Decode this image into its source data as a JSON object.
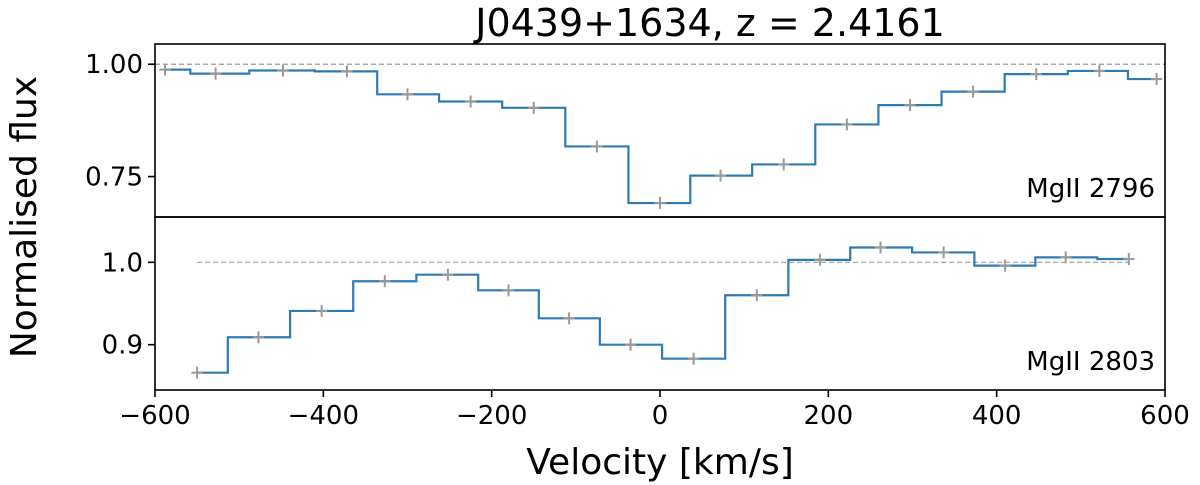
{
  "chart_data": {
    "type": "line",
    "title": "J0439+1634,   z = 2.4161",
    "xlabel": "Velocity [km/s]",
    "ylabel": "Normalised flux",
    "xlim": [
      -600,
      600
    ],
    "xticks": [
      -600,
      -400,
      -200,
      0,
      200,
      400,
      600
    ],
    "xtick_labels": [
      "−600",
      "−400",
      "−200",
      "0",
      "200",
      "400",
      "600"
    ],
    "grid": false,
    "colors": {
      "spectrum": "#2e7bb4",
      "errorbar": "#999999",
      "continuum": "#999999"
    },
    "panels": [
      {
        "label": "MgII 2796",
        "ylim": [
          0.66,
          1.045
        ],
        "yticks": [
          0.75,
          1.0
        ],
        "ytick_labels": [
          "0.75",
          "1.00"
        ],
        "continuum": {
          "y": 1.0,
          "x_range": [
            -600,
            600
          ]
        },
        "x": [
          -588,
          -528,
          -448,
          -372,
          -300,
          -225,
          -150,
          -75,
          0,
          72,
          147,
          222,
          297,
          372,
          447,
          522,
          590
        ],
        "y": [
          0.988,
          0.979,
          0.986,
          0.984,
          0.933,
          0.917,
          0.903,
          0.817,
          0.691,
          0.752,
          0.777,
          0.866,
          0.909,
          0.939,
          0.978,
          0.985,
          0.967
        ]
      },
      {
        "label": "MgII 2803",
        "ylim": [
          0.845,
          1.055
        ],
        "yticks": [
          0.9,
          1.0
        ],
        "ytick_labels": [
          "0.9",
          "1.0"
        ],
        "continuum": {
          "y": 1.0,
          "x_range": [
            -550,
            560
          ]
        },
        "x": [
          -550,
          -477,
          -402,
          -327,
          -252,
          -180,
          -108,
          -35,
          40,
          115,
          190,
          262,
          337,
          410,
          482,
          557
        ],
        "y": [
          0.866,
          0.909,
          0.941,
          0.977,
          0.985,
          0.966,
          0.932,
          0.9,
          0.883,
          0.96,
          1.003,
          1.018,
          1.012,
          0.996,
          1.006,
          1.004
        ]
      }
    ]
  }
}
